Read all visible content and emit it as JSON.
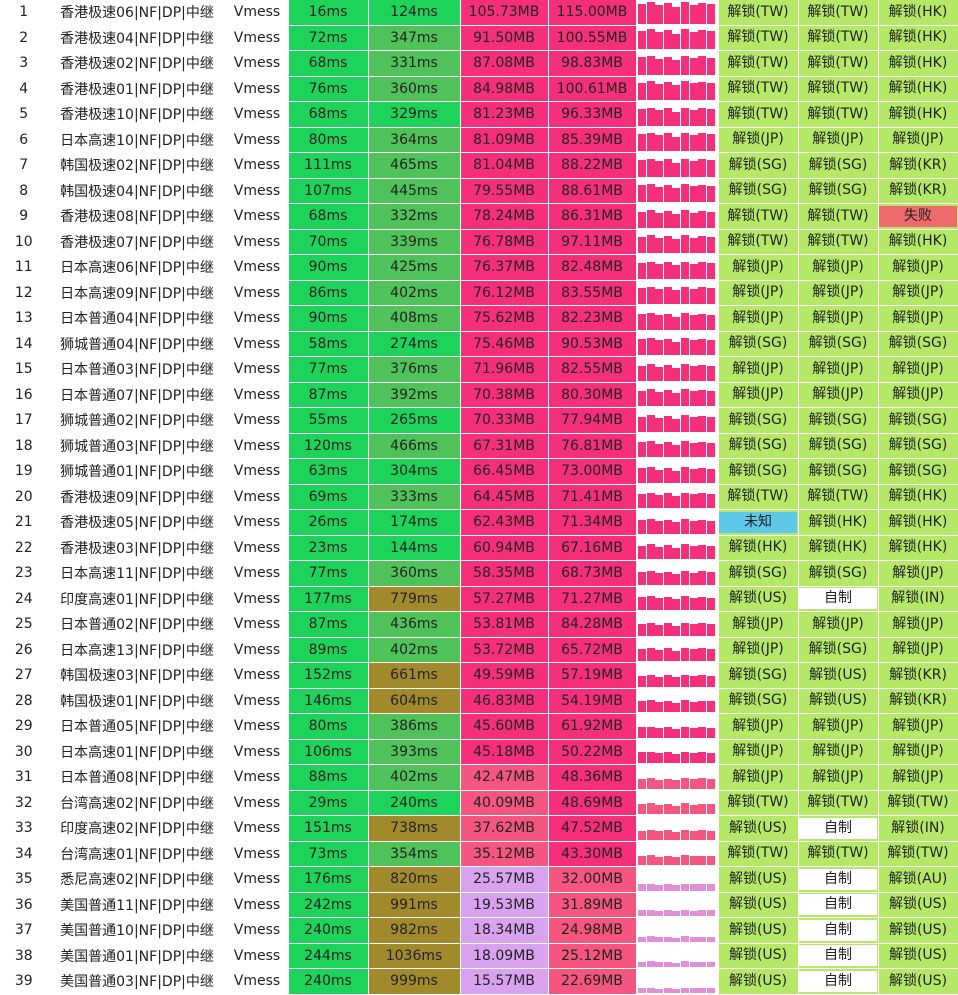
{
  "colors": {
    "ping_good": "#1ed35a",
    "ping_mid": "#c5d04a",
    "ping_bad": "#a28a2c",
    "speed_hot": "#f52f79",
    "speed_warm": "#f4567f",
    "speed_cool": "#d9a2ef",
    "unlock": "#b4e866",
    "unknown": "#5ec8e8",
    "self": "#ffffff",
    "fail": "#ef6a6a"
  },
  "rows": [
    {
      "idx": "1",
      "name": "香港极速06|NF|DP|中继",
      "proto": "Vmess",
      "ping": "16ms",
      "latency": "124ms",
      "avg": "105.73MB",
      "max": "115.00MB",
      "speed_level": 1.0,
      "nf": "解锁(TW)",
      "dp": "解锁(TW)",
      "yt": "解锁(HK)"
    },
    {
      "idx": "2",
      "name": "香港极速04|NF|DP|中继",
      "proto": "Vmess",
      "ping": "72ms",
      "latency": "347ms",
      "avg": "91.50MB",
      "max": "100.55MB",
      "speed_level": 0.9,
      "nf": "解锁(TW)",
      "dp": "解锁(TW)",
      "yt": "解锁(HK)"
    },
    {
      "idx": "3",
      "name": "香港极速02|NF|DP|中继",
      "proto": "Vmess",
      "ping": "68ms",
      "latency": "331ms",
      "avg": "87.08MB",
      "max": "98.83MB",
      "speed_level": 0.88,
      "nf": "解锁(TW)",
      "dp": "解锁(TW)",
      "yt": "解锁(HK)"
    },
    {
      "idx": "4",
      "name": "香港极速01|NF|DP|中继",
      "proto": "Vmess",
      "ping": "76ms",
      "latency": "360ms",
      "avg": "84.98MB",
      "max": "100.61MB",
      "speed_level": 0.86,
      "nf": "解锁(TW)",
      "dp": "解锁(TW)",
      "yt": "解锁(HK)"
    },
    {
      "idx": "5",
      "name": "香港极速10|NF|DP|中继",
      "proto": "Vmess",
      "ping": "68ms",
      "latency": "329ms",
      "avg": "81.23MB",
      "max": "96.33MB",
      "speed_level": 0.84,
      "nf": "解锁(TW)",
      "dp": "解锁(TW)",
      "yt": "解锁(HK)"
    },
    {
      "idx": "6",
      "name": "日本高速10|NF|DP|中继",
      "proto": "Vmess",
      "ping": "80ms",
      "latency": "364ms",
      "avg": "81.09MB",
      "max": "85.39MB",
      "speed_level": 0.84,
      "nf": "解锁(JP)",
      "dp": "解锁(JP)",
      "yt": "解锁(JP)"
    },
    {
      "idx": "7",
      "name": "韩国极速02|NF|DP|中继",
      "proto": "Vmess",
      "ping": "111ms",
      "latency": "465ms",
      "avg": "81.04MB",
      "max": "88.22MB",
      "speed_level": 0.84,
      "nf": "解锁(SG)",
      "dp": "解锁(SG)",
      "yt": "解锁(KR)"
    },
    {
      "idx": "8",
      "name": "韩国极速04|NF|DP|中继",
      "proto": "Vmess",
      "ping": "107ms",
      "latency": "445ms",
      "avg": "79.55MB",
      "max": "88.61MB",
      "speed_level": 0.82,
      "nf": "解锁(SG)",
      "dp": "解锁(SG)",
      "yt": "解锁(KR)"
    },
    {
      "idx": "9",
      "name": "香港极速08|NF|DP|中继",
      "proto": "Vmess",
      "ping": "68ms",
      "latency": "332ms",
      "avg": "78.24MB",
      "max": "86.31MB",
      "speed_level": 0.8,
      "nf": "解锁(TW)",
      "dp": "解锁(TW)",
      "yt": "失败"
    },
    {
      "idx": "10",
      "name": "香港极速07|NF|DP|中继",
      "proto": "Vmess",
      "ping": "70ms",
      "latency": "339ms",
      "avg": "76.78MB",
      "max": "97.11MB",
      "speed_level": 0.8,
      "nf": "解锁(TW)",
      "dp": "解锁(TW)",
      "yt": "解锁(HK)"
    },
    {
      "idx": "11",
      "name": "日本高速06|NF|DP|中继",
      "proto": "Vmess",
      "ping": "90ms",
      "latency": "425ms",
      "avg": "76.37MB",
      "max": "82.48MB",
      "speed_level": 0.79,
      "nf": "解锁(JP)",
      "dp": "解锁(JP)",
      "yt": "解锁(JP)"
    },
    {
      "idx": "12",
      "name": "日本高速09|NF|DP|中继",
      "proto": "Vmess",
      "ping": "86ms",
      "latency": "402ms",
      "avg": "76.12MB",
      "max": "83.55MB",
      "speed_level": 0.79,
      "nf": "解锁(JP)",
      "dp": "解锁(JP)",
      "yt": "解锁(JP)"
    },
    {
      "idx": "13",
      "name": "日本普通04|NF|DP|中继",
      "proto": "Vmess",
      "ping": "90ms",
      "latency": "408ms",
      "avg": "75.62MB",
      "max": "82.23MB",
      "speed_level": 0.78,
      "nf": "解锁(JP)",
      "dp": "解锁(JP)",
      "yt": "解锁(JP)"
    },
    {
      "idx": "14",
      "name": "狮城普通04|NF|DP|中继",
      "proto": "Vmess",
      "ping": "58ms",
      "latency": "274ms",
      "avg": "75.46MB",
      "max": "90.53MB",
      "speed_level": 0.78,
      "nf": "解锁(SG)",
      "dp": "解锁(SG)",
      "yt": "解锁(SG)"
    },
    {
      "idx": "15",
      "name": "日本普通03|NF|DP|中继",
      "proto": "Vmess",
      "ping": "77ms",
      "latency": "376ms",
      "avg": "71.96MB",
      "max": "82.55MB",
      "speed_level": 0.76,
      "nf": "解锁(JP)",
      "dp": "解锁(JP)",
      "yt": "解锁(JP)"
    },
    {
      "idx": "16",
      "name": "日本普通07|NF|DP|中继",
      "proto": "Vmess",
      "ping": "87ms",
      "latency": "392ms",
      "avg": "70.38MB",
      "max": "80.30MB",
      "speed_level": 0.75,
      "nf": "解锁(JP)",
      "dp": "解锁(JP)",
      "yt": "解锁(JP)"
    },
    {
      "idx": "17",
      "name": "狮城普通02|NF|DP|中继",
      "proto": "Vmess",
      "ping": "55ms",
      "latency": "265ms",
      "avg": "70.33MB",
      "max": "77.94MB",
      "speed_level": 0.75,
      "nf": "解锁(SG)",
      "dp": "解锁(SG)",
      "yt": "解锁(SG)"
    },
    {
      "idx": "18",
      "name": "狮城普通03|NF|DP|中继",
      "proto": "Vmess",
      "ping": "120ms",
      "latency": "466ms",
      "avg": "67.31MB",
      "max": "76.81MB",
      "speed_level": 0.72,
      "nf": "解锁(SG)",
      "dp": "解锁(SG)",
      "yt": "解锁(SG)"
    },
    {
      "idx": "19",
      "name": "狮城普通01|NF|DP|中继",
      "proto": "Vmess",
      "ping": "63ms",
      "latency": "304ms",
      "avg": "66.45MB",
      "max": "73.00MB",
      "speed_level": 0.72,
      "nf": "解锁(SG)",
      "dp": "解锁(SG)",
      "yt": "解锁(SG)"
    },
    {
      "idx": "20",
      "name": "香港极速09|NF|DP|中继",
      "proto": "Vmess",
      "ping": "69ms",
      "latency": "333ms",
      "avg": "64.45MB",
      "max": "71.41MB",
      "speed_level": 0.7,
      "nf": "解锁(TW)",
      "dp": "解锁(TW)",
      "yt": "解锁(HK)"
    },
    {
      "idx": "21",
      "name": "香港极速05|NF|DP|中继",
      "proto": "Vmess",
      "ping": "26ms",
      "latency": "174ms",
      "avg": "62.43MB",
      "max": "71.34MB",
      "speed_level": 0.68,
      "nf": "未知",
      "dp": "解锁(HK)",
      "yt": "解锁(HK)"
    },
    {
      "idx": "22",
      "name": "香港极速03|NF|DP|中继",
      "proto": "Vmess",
      "ping": "23ms",
      "latency": "144ms",
      "avg": "60.94MB",
      "max": "67.16MB",
      "speed_level": 0.66,
      "nf": "解锁(HK)",
      "dp": "解锁(HK)",
      "yt": "解锁(HK)"
    },
    {
      "idx": "23",
      "name": "日本高速11|NF|DP|中继",
      "proto": "Vmess",
      "ping": "77ms",
      "latency": "360ms",
      "avg": "58.35MB",
      "max": "68.73MB",
      "speed_level": 0.64,
      "nf": "解锁(SG)",
      "dp": "解锁(SG)",
      "yt": "解锁(JP)"
    },
    {
      "idx": "24",
      "name": "印度高速01|NF|DP|中继",
      "proto": "Vmess",
      "ping": "177ms",
      "latency": "779ms",
      "avg": "57.27MB",
      "max": "71.27MB",
      "speed_level": 0.63,
      "nf": "解锁(US)",
      "dp": "自制",
      "yt": "解锁(IN)"
    },
    {
      "idx": "25",
      "name": "日本普通02|NF|DP|中继",
      "proto": "Vmess",
      "ping": "87ms",
      "latency": "436ms",
      "avg": "53.81MB",
      "max": "84.28MB",
      "speed_level": 0.6,
      "nf": "解锁(JP)",
      "dp": "解锁(JP)",
      "yt": "解锁(JP)"
    },
    {
      "idx": "26",
      "name": "日本高速13|NF|DP|中继",
      "proto": "Vmess",
      "ping": "89ms",
      "latency": "402ms",
      "avg": "53.72MB",
      "max": "65.72MB",
      "speed_level": 0.6,
      "nf": "解锁(JP)",
      "dp": "解锁(SG)",
      "yt": "解锁(JP)"
    },
    {
      "idx": "27",
      "name": "韩国极速03|NF|DP|中继",
      "proto": "Vmess",
      "ping": "152ms",
      "latency": "661ms",
      "avg": "49.59MB",
      "max": "57.19MB",
      "speed_level": 0.56,
      "nf": "解锁(SG)",
      "dp": "解锁(US)",
      "yt": "解锁(KR)"
    },
    {
      "idx": "28",
      "name": "韩国极速01|NF|DP|中继",
      "proto": "Vmess",
      "ping": "146ms",
      "latency": "604ms",
      "avg": "46.83MB",
      "max": "54.19MB",
      "speed_level": 0.54,
      "nf": "解锁(SG)",
      "dp": "解锁(US)",
      "yt": "解锁(KR)"
    },
    {
      "idx": "29",
      "name": "日本普通05|NF|DP|中继",
      "proto": "Vmess",
      "ping": "80ms",
      "latency": "386ms",
      "avg": "45.60MB",
      "max": "61.92MB",
      "speed_level": 0.52,
      "nf": "解锁(JP)",
      "dp": "解锁(JP)",
      "yt": "解锁(JP)"
    },
    {
      "idx": "30",
      "name": "日本高速01|NF|DP|中继",
      "proto": "Vmess",
      "ping": "106ms",
      "latency": "393ms",
      "avg": "45.18MB",
      "max": "50.22MB",
      "speed_level": 0.52,
      "nf": "解锁(JP)",
      "dp": "解锁(JP)",
      "yt": "解锁(JP)"
    },
    {
      "idx": "31",
      "name": "日本普通08|NF|DP|中继",
      "proto": "Vmess",
      "ping": "88ms",
      "latency": "402ms",
      "avg": "42.47MB",
      "max": "48.36MB",
      "speed_level": 0.5,
      "nf": "解锁(JP)",
      "dp": "解锁(JP)",
      "yt": "解锁(JP)"
    },
    {
      "idx": "32",
      "name": "台湾高速02|NF|DP|中继",
      "proto": "Vmess",
      "ping": "29ms",
      "latency": "240ms",
      "avg": "40.09MB",
      "max": "48.69MB",
      "speed_level": 0.48,
      "nf": "解锁(TW)",
      "dp": "解锁(TW)",
      "yt": "解锁(TW)"
    },
    {
      "idx": "33",
      "name": "印度高速02|NF|DP|中继",
      "proto": "Vmess",
      "ping": "151ms",
      "latency": "738ms",
      "avg": "37.62MB",
      "max": "47.52MB",
      "speed_level": 0.46,
      "nf": "解锁(US)",
      "dp": "自制",
      "yt": "解锁(IN)"
    },
    {
      "idx": "34",
      "name": "台湾高速01|NF|DP|中继",
      "proto": "Vmess",
      "ping": "73ms",
      "latency": "354ms",
      "avg": "35.12MB",
      "max": "43.30MB",
      "speed_level": 0.44,
      "nf": "解锁(TW)",
      "dp": "解锁(TW)",
      "yt": "解锁(TW)"
    },
    {
      "idx": "35",
      "name": "悉尼高速02|NF|DP|中继",
      "proto": "Vmess",
      "ping": "176ms",
      "latency": "820ms",
      "avg": "25.57MB",
      "max": "32.00MB",
      "speed_level": 0.34,
      "nf": "解锁(US)",
      "dp": "自制",
      "yt": "解锁(AU)"
    },
    {
      "idx": "36",
      "name": "美国普通11|NF|DP|中继",
      "proto": "Vmess",
      "ping": "242ms",
      "latency": "991ms",
      "avg": "19.53MB",
      "max": "31.89MB",
      "speed_level": 0.28,
      "nf": "解锁(US)",
      "dp": "自制",
      "yt": "解锁(US)"
    },
    {
      "idx": "37",
      "name": "美国普通10|NF|DP|中继",
      "proto": "Vmess",
      "ping": "240ms",
      "latency": "982ms",
      "avg": "18.34MB",
      "max": "24.98MB",
      "speed_level": 0.26,
      "nf": "解锁(US)",
      "dp": "自制",
      "yt": "解锁(US)"
    },
    {
      "idx": "38",
      "name": "美国普通01|NF|DP|中继",
      "proto": "Vmess",
      "ping": "244ms",
      "latency": "1036ms",
      "avg": "18.09MB",
      "max": "25.12MB",
      "speed_level": 0.26,
      "nf": "解锁(US)",
      "dp": "自制",
      "yt": "解锁(US)"
    },
    {
      "idx": "39",
      "name": "美国普通03|NF|DP|中继",
      "proto": "Vmess",
      "ping": "240ms",
      "latency": "999ms",
      "avg": "15.57MB",
      "max": "22.69MB",
      "speed_level": 0.24,
      "nf": "解锁(US)",
      "dp": "自制",
      "yt": "解锁(US)"
    }
  ]
}
